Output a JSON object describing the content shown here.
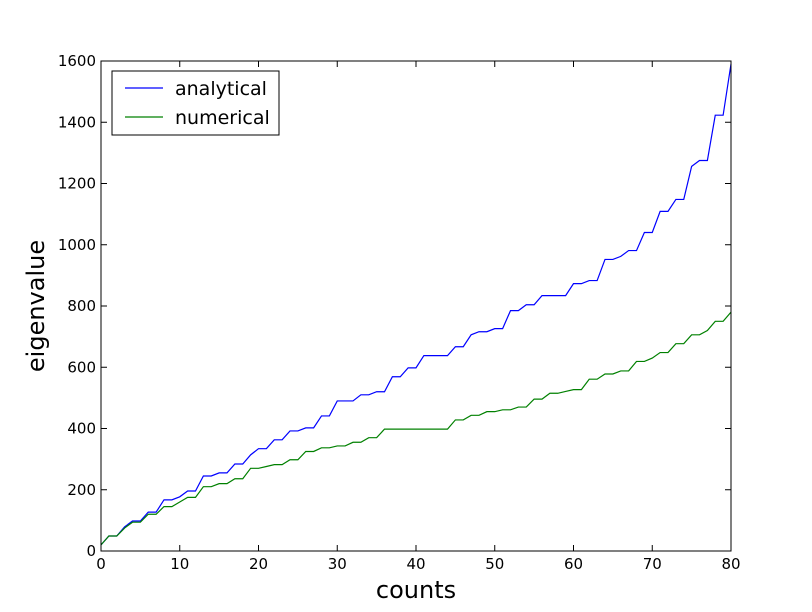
{
  "chart_data": {
    "type": "line",
    "xlabel": "counts",
    "ylabel": "eigenvalue",
    "xlim": [
      0,
      80
    ],
    "ylim": [
      0,
      1600
    ],
    "xticks": [
      "0",
      "10",
      "20",
      "30",
      "40",
      "50",
      "60",
      "70",
      "80"
    ],
    "yticks": [
      "0",
      "200",
      "400",
      "600",
      "800",
      "1000",
      "1200",
      "1400",
      "1600"
    ],
    "grid": false,
    "legend_position": "top-left",
    "series": [
      {
        "name": "analytical",
        "color": "#0000ff",
        "x": [
          0,
          1,
          2,
          3,
          4,
          5,
          6,
          7,
          8,
          9,
          10,
          11,
          12,
          13,
          14,
          15,
          16,
          17,
          18,
          19,
          20,
          21,
          22,
          23,
          24,
          25,
          26,
          27,
          28,
          29,
          30,
          31,
          32,
          33,
          34,
          35,
          36,
          37,
          38,
          39,
          40,
          41,
          42,
          43,
          44,
          45,
          46,
          47,
          48,
          49,
          50,
          51,
          52,
          53,
          54,
          55,
          56,
          57,
          58,
          59,
          60,
          61,
          62,
          63,
          64,
          65,
          66,
          67,
          68,
          69,
          70,
          71,
          72,
          73,
          74,
          75,
          76,
          77,
          78,
          79,
          80
        ],
        "y": [
          20,
          49,
          49,
          79,
          98,
          98,
          127,
          127,
          167,
          167,
          177,
          196,
          196,
          245,
          245,
          255,
          255,
          284,
          284,
          314,
          334,
          334,
          363,
          363,
          392,
          392,
          402,
          402,
          441,
          441,
          490,
          490,
          490,
          510,
          510,
          520,
          520,
          569,
          569,
          598,
          598,
          638,
          638,
          638,
          638,
          667,
          667,
          706,
          716,
          716,
          726,
          726,
          785,
          785,
          804,
          804,
          834,
          834,
          834,
          834,
          873,
          873,
          883,
          883,
          952,
          952,
          962,
          981,
          981,
          1040,
          1040,
          1109,
          1109,
          1148,
          1148,
          1256,
          1275,
          1275,
          1423,
          1423,
          1590
        ]
      },
      {
        "name": "numerical",
        "color": "#008000",
        "x": [
          0,
          1,
          2,
          3,
          4,
          5,
          6,
          7,
          8,
          9,
          10,
          11,
          12,
          13,
          14,
          15,
          16,
          17,
          18,
          19,
          20,
          21,
          22,
          23,
          24,
          25,
          26,
          27,
          28,
          29,
          30,
          31,
          32,
          33,
          34,
          35,
          36,
          37,
          38,
          39,
          40,
          41,
          42,
          43,
          44,
          45,
          46,
          47,
          48,
          49,
          50,
          51,
          52,
          53,
          54,
          55,
          56,
          57,
          58,
          59,
          60,
          61,
          62,
          63,
          64,
          65,
          66,
          67,
          68,
          69,
          70,
          71,
          72,
          73,
          74,
          75,
          76,
          77,
          78,
          79,
          80
        ],
        "y": [
          20,
          49,
          49,
          75,
          94,
          94,
          120,
          120,
          145,
          145,
          160,
          175,
          175,
          210,
          210,
          220,
          220,
          236,
          236,
          270,
          270,
          276,
          282,
          282,
          298,
          298,
          325,
          325,
          337,
          337,
          343,
          343,
          355,
          355,
          370,
          370,
          398,
          398,
          398,
          398,
          398,
          398,
          398,
          398,
          398,
          428,
          428,
          443,
          443,
          455,
          455,
          461,
          461,
          470,
          470,
          496,
          496,
          515,
          515,
          521,
          527,
          527,
          561,
          561,
          578,
          578,
          588,
          588,
          619,
          619,
          630,
          648,
          648,
          677,
          677,
          706,
          706,
          720,
          750,
          750,
          780
        ]
      }
    ]
  }
}
